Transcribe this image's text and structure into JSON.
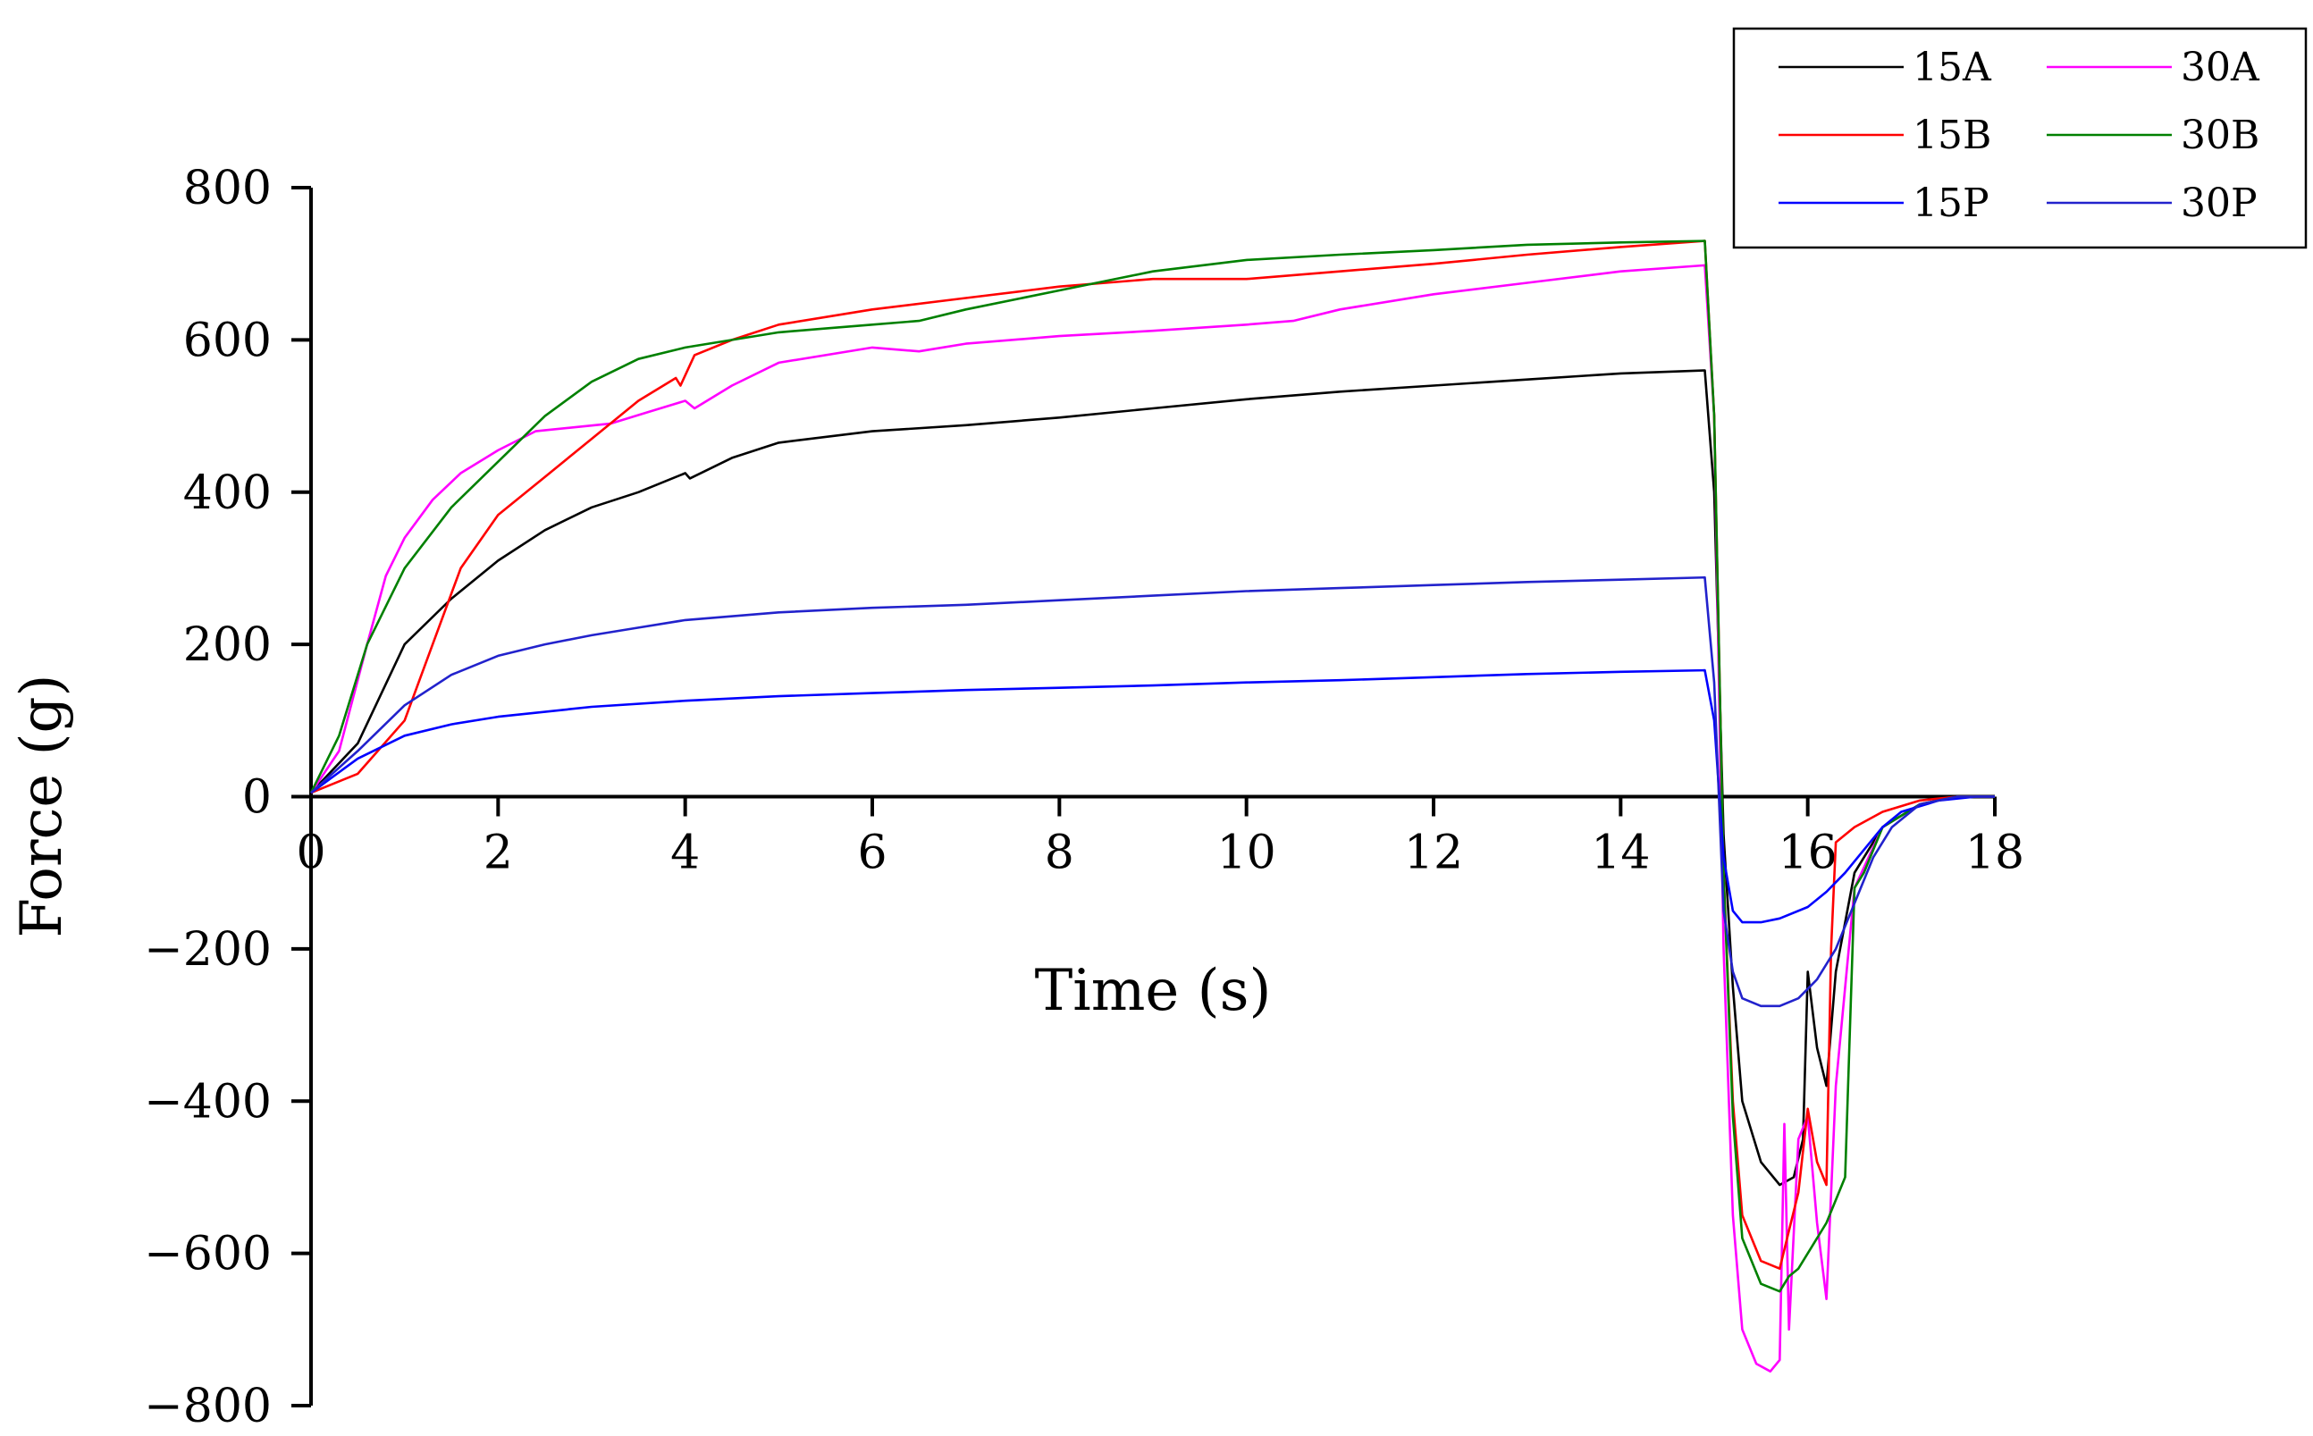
{
  "chart_data": {
    "type": "line",
    "title": "",
    "xlabel": "Time (s)",
    "ylabel": "Force (g)",
    "xlim": [
      0,
      18
    ],
    "ylim": [
      -800,
      800
    ],
    "xticks": [
      0,
      2,
      4,
      6,
      8,
      10,
      12,
      14,
      16,
      18
    ],
    "yticks": [
      800,
      600,
      400,
      200,
      0,
      -200,
      -400,
      -600,
      -800
    ],
    "xtick_labels": [
      "0",
      "2",
      "4",
      "6",
      "8",
      "10",
      "12",
      "14",
      "16",
      "18"
    ],
    "ytick_labels": [
      "800",
      "600",
      "400",
      "200",
      "0",
      "−200",
      "−400",
      "−600",
      "−800"
    ],
    "grid": false,
    "legend_position": "top-right",
    "series": [
      {
        "name": "15A",
        "color": "#000000",
        "x": [
          0,
          0.5,
          1,
          1.5,
          2,
          2.5,
          3,
          3.5,
          4,
          4.05,
          4.5,
          5,
          6,
          7,
          8,
          9,
          10,
          11,
          12,
          13,
          14,
          14.9,
          15.0,
          15.1,
          15.2,
          15.3,
          15.5,
          15.7,
          15.85,
          15.95,
          16.0,
          16.1,
          16.2,
          16.3,
          16.5,
          16.8,
          17.2,
          17.6,
          18
        ],
        "y": [
          5,
          70,
          200,
          260,
          310,
          350,
          380,
          400,
          425,
          418,
          445,
          465,
          480,
          488,
          498,
          510,
          522,
          532,
          540,
          548,
          556,
          560,
          400,
          -50,
          -250,
          -400,
          -480,
          -510,
          -500,
          -450,
          -230,
          -330,
          -380,
          -230,
          -100,
          -40,
          -10,
          0,
          0
        ]
      },
      {
        "name": "30A",
        "color": "#ff00ff",
        "x": [
          0,
          0.3,
          0.6,
          0.8,
          1,
          1.3,
          1.6,
          2,
          2.4,
          2.8,
          3.2,
          3.6,
          4.0,
          4.1,
          4.5,
          5,
          6,
          6.5,
          7,
          8,
          9,
          10,
          10.5,
          11,
          12,
          13,
          14,
          14.9,
          15.0,
          15.1,
          15.2,
          15.3,
          15.45,
          15.6,
          15.7,
          15.75,
          15.8,
          15.9,
          16.0,
          16.1,
          16.2,
          16.3,
          16.5,
          16.8,
          17.2,
          17.6,
          18
        ],
        "y": [
          5,
          60,
          200,
          290,
          340,
          390,
          425,
          455,
          480,
          485,
          490,
          505,
          520,
          510,
          540,
          570,
          590,
          585,
          595,
          605,
          612,
          620,
          625,
          640,
          660,
          675,
          690,
          698,
          500,
          -200,
          -550,
          -700,
          -745,
          -755,
          -740,
          -430,
          -700,
          -450,
          -420,
          -560,
          -660,
          -380,
          -120,
          -40,
          -10,
          0,
          0
        ]
      },
      {
        "name": "15B",
        "color": "#ff0000",
        "x": [
          0,
          0.5,
          1,
          1.3,
          1.6,
          2,
          2.5,
          3,
          3.5,
          3.9,
          3.95,
          4.1,
          4.5,
          5,
          6,
          7,
          8,
          9,
          10,
          11,
          12,
          13,
          14,
          14.9,
          15.0,
          15.1,
          15.2,
          15.3,
          15.5,
          15.7,
          15.8,
          15.9,
          16.0,
          16.1,
          16.2,
          16.25,
          16.3,
          16.5,
          16.8,
          17.2,
          17.6,
          18
        ],
        "y": [
          5,
          30,
          100,
          200,
          300,
          370,
          420,
          470,
          520,
          550,
          540,
          580,
          600,
          620,
          640,
          655,
          670,
          680,
          680,
          690,
          700,
          712,
          722,
          730,
          500,
          -100,
          -400,
          -550,
          -610,
          -620,
          -570,
          -520,
          -410,
          -480,
          -510,
          -200,
          -60,
          -40,
          -20,
          -5,
          0,
          0
        ]
      },
      {
        "name": "30B",
        "color": "#008000",
        "x": [
          0,
          0.3,
          0.6,
          1,
          1.5,
          2,
          2.5,
          3,
          3.5,
          4,
          4.5,
          5,
          5.5,
          6,
          6.5,
          7,
          8,
          9,
          10,
          11,
          12,
          13,
          14,
          14.9,
          15.0,
          15.1,
          15.2,
          15.3,
          15.5,
          15.7,
          15.8,
          15.9,
          16.0,
          16.2,
          16.4,
          16.5,
          16.6,
          16.8,
          17.2,
          17.6,
          18
        ],
        "y": [
          5,
          80,
          200,
          300,
          380,
          440,
          500,
          545,
          575,
          590,
          600,
          610,
          615,
          620,
          625,
          640,
          665,
          690,
          705,
          712,
          718,
          725,
          728,
          730,
          500,
          -100,
          -420,
          -580,
          -640,
          -650,
          -630,
          -620,
          -600,
          -560,
          -500,
          -120,
          -100,
          -40,
          -10,
          0,
          0
        ]
      },
      {
        "name": "15P",
        "color": "#0000ff",
        "x": [
          0,
          0.5,
          1,
          1.5,
          2,
          3,
          4,
          5,
          6,
          7,
          8,
          9,
          10,
          11,
          12,
          13,
          14,
          14.9,
          15.0,
          15.1,
          15.2,
          15.3,
          15.5,
          15.7,
          16.0,
          16.2,
          16.4,
          16.6,
          16.8,
          17.0,
          17.4,
          17.8,
          18
        ],
        "y": [
          5,
          50,
          80,
          95,
          105,
          118,
          126,
          132,
          136,
          140,
          143,
          146,
          150,
          153,
          157,
          161,
          164,
          166,
          100,
          -80,
          -150,
          -165,
          -165,
          -160,
          -145,
          -125,
          -100,
          -70,
          -40,
          -20,
          -5,
          0,
          0
        ]
      },
      {
        "name": "30P",
        "color": "#2222cc",
        "x": [
          0,
          0.5,
          1,
          1.5,
          2,
          2.5,
          3,
          3.5,
          4,
          5,
          6,
          7,
          8,
          9,
          10,
          11,
          12,
          13,
          14,
          14.9,
          15.0,
          15.1,
          15.2,
          15.3,
          15.5,
          15.7,
          15.9,
          16.1,
          16.3,
          16.5,
          16.7,
          16.9,
          17.2,
          17.6,
          18
        ],
        "y": [
          5,
          60,
          120,
          160,
          185,
          200,
          212,
          222,
          232,
          242,
          248,
          252,
          258,
          264,
          270,
          274,
          278,
          282,
          285,
          288,
          150,
          -150,
          -230,
          -265,
          -275,
          -275,
          -265,
          -240,
          -200,
          -140,
          -80,
          -40,
          -10,
          0,
          0
        ]
      }
    ]
  }
}
